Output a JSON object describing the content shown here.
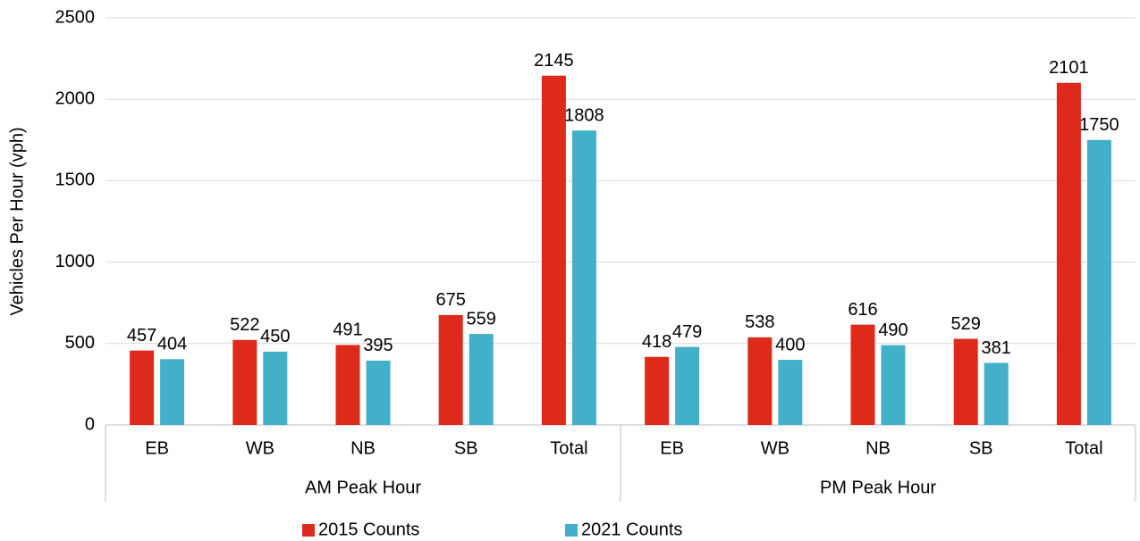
{
  "chart_data": {
    "type": "bar",
    "y_label": "Vehicles Per Hour (vph)",
    "groups": [
      {
        "label": "AM Peak Hour",
        "categories": [
          "EB",
          "WB",
          "NB",
          "SB",
          "Total"
        ]
      },
      {
        "label": "PM Peak Hour",
        "categories": [
          "EB",
          "WB",
          "NB",
          "SB",
          "Total"
        ]
      }
    ],
    "series": [
      {
        "name": "2015 Counts",
        "color": "#dd2a1b",
        "values": [
          457,
          522,
          491,
          675,
          2145,
          418,
          538,
          616,
          529,
          2101
        ]
      },
      {
        "name": "2021 Counts",
        "color": "#41b0c8",
        "values": [
          404,
          450,
          395,
          559,
          1808,
          479,
          400,
          490,
          381,
          1750
        ]
      }
    ],
    "ylim": [
      0,
      2500
    ],
    "yticks": [
      0,
      500,
      1000,
      1500,
      2000,
      2500
    ],
    "grid": true,
    "legend": "bottom"
  }
}
